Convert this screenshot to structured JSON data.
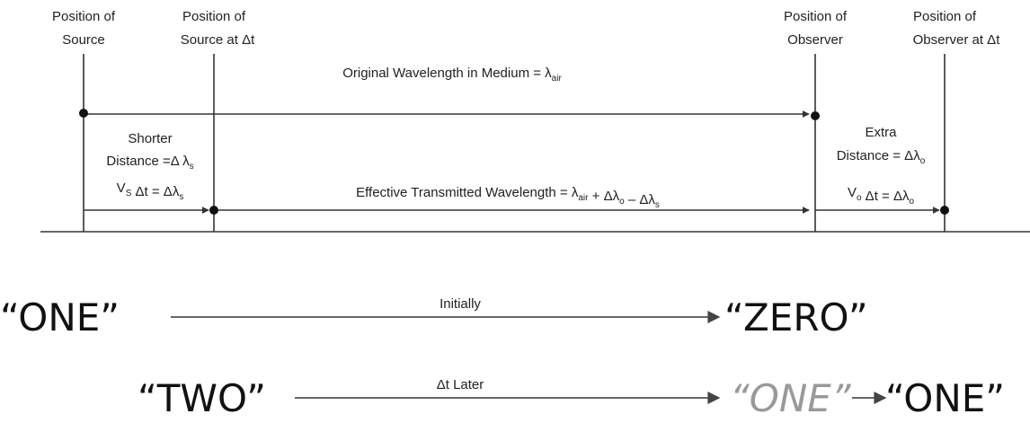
{
  "labels": {
    "source": [
      "Position of",
      "Source"
    ],
    "source_dt": [
      "Position of",
      "Source at Δt"
    ],
    "observer": [
      "Position of",
      "Observer"
    ],
    "observer_dt": [
      "Position of",
      "Observer at Δt"
    ]
  },
  "original": [
    {
      "text": "Original Wavelength in Medium = λ",
      "sub": "air"
    }
  ],
  "shorter": {
    "line1": "Shorter",
    "line2": [
      {
        "text": "Distance =Δ λ",
        "sub": "s"
      }
    ]
  },
  "vs": [
    {
      "text": "V",
      "sub": "S"
    },
    {
      "text": " Δt = Δλ",
      "sub": "s"
    }
  ],
  "effective": [
    {
      "text": "Effective Transmitted Wavelength = λ",
      "sub": "air"
    },
    {
      "text": " + Δλ",
      "sub": "o"
    },
    {
      "text": " – Δλ",
      "sub": "s"
    }
  ],
  "extra": {
    "line1": "Extra",
    "line2": [
      {
        "text": "Distance = Δλ",
        "sub": "o"
      }
    ]
  },
  "vo": [
    {
      "text": "V",
      "sub": "o"
    },
    {
      "text": " Δt = Δλ",
      "sub": "o"
    }
  ],
  "bottom": {
    "initially": {
      "from": "“ONE”",
      "label": "Initially",
      "to": "“ZERO”"
    },
    "later": {
      "from": "“TWO”",
      "label": "Δt Later",
      "previous": "“ONE”",
      "to": "“ONE”"
    }
  }
}
